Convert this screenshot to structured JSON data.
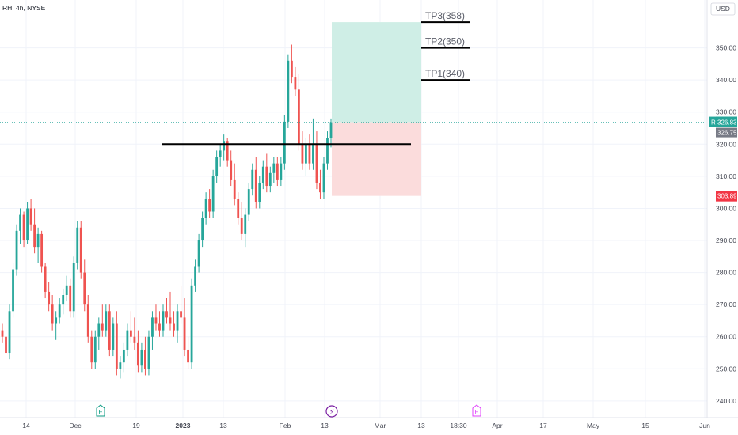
{
  "header": {
    "symbol": "RH, 4h, NYSE",
    "currency": "USD"
  },
  "colors": {
    "up": "#26a69a",
    "down": "#ef5350",
    "profit_zone": "#cfeee6",
    "loss_zone": "#fbdcdc",
    "grid": "#f0f3fa"
  },
  "chart_data": {
    "type": "candlestick",
    "ylim": [
      238,
      360
    ],
    "y_ticks": [
      "240.00",
      "250.00",
      "260.00",
      "270.00",
      "280.00",
      "290.00",
      "300.00",
      "310.00",
      "320.00",
      "330.00",
      "340.00",
      "350.00"
    ],
    "x_tick_labels": [
      "14",
      "Dec",
      "19",
      "2023",
      "13",
      "Feb",
      "13",
      "Mar",
      "13",
      "18:30",
      "Apr",
      "17",
      "May",
      "15",
      "Jun"
    ],
    "last_price": {
      "symbol": "RH",
      "label": "326.83",
      "value": 326.83,
      "prev_label": "326.75"
    },
    "stop_loss": {
      "label": "303.89",
      "value": 303.89
    },
    "entry": 326.83,
    "horizontal_level": 320,
    "take_profits": [
      {
        "label": "TP1(340)",
        "value": 340
      },
      {
        "label": "TP2(350)",
        "value": 350
      },
      {
        "label": "TP3(358)",
        "value": 358
      }
    ],
    "events": [
      {
        "symbol": "E",
        "type": "earnings"
      },
      {
        "symbol": "⚡",
        "type": "split"
      },
      {
        "symbol": "E",
        "type": "earnings-upcoming"
      }
    ],
    "candles": [
      [
        262,
        264,
        258,
        260
      ],
      [
        260,
        262,
        253,
        255
      ],
      [
        255,
        270,
        253,
        268
      ],
      [
        268,
        283,
        266,
        281
      ],
      [
        281,
        295,
        279,
        293
      ],
      [
        293,
        300,
        289,
        298
      ],
      [
        298,
        299,
        288,
        290
      ],
      [
        290,
        302,
        289,
        300
      ],
      [
        300,
        303,
        293,
        295
      ],
      [
        295,
        300,
        286,
        288
      ],
      [
        288,
        294,
        283,
        292
      ],
      [
        292,
        293,
        280,
        282
      ],
      [
        282,
        283,
        272,
        274
      ],
      [
        274,
        277,
        268,
        270
      ],
      [
        270,
        273,
        262,
        264
      ],
      [
        264,
        268,
        259,
        266
      ],
      [
        266,
        272,
        264,
        270
      ],
      [
        270,
        275,
        267,
        273
      ],
      [
        273,
        279,
        271,
        276
      ],
      [
        276,
        278,
        266,
        268
      ],
      [
        268,
        285,
        266,
        283
      ],
      [
        283,
        296,
        281,
        294
      ],
      [
        294,
        296,
        278,
        280
      ],
      [
        280,
        284,
        268,
        270
      ],
      [
        270,
        273,
        258,
        260
      ],
      [
        260,
        262,
        250,
        252
      ],
      [
        252,
        262,
        250,
        260
      ],
      [
        260,
        266,
        256,
        264
      ],
      [
        264,
        270,
        260,
        262
      ],
      [
        262,
        270,
        260,
        268
      ],
      [
        268,
        270,
        254,
        256
      ],
      [
        256,
        266,
        254,
        264
      ],
      [
        264,
        268,
        248,
        250
      ],
      [
        250,
        254,
        247,
        252
      ],
      [
        252,
        258,
        249,
        256
      ],
      [
        256,
        264,
        254,
        262
      ],
      [
        262,
        268,
        258,
        260
      ],
      [
        260,
        266,
        256,
        258
      ],
      [
        258,
        262,
        249,
        251
      ],
      [
        251,
        258,
        249,
        256
      ],
      [
        256,
        260,
        248,
        250
      ],
      [
        250,
        262,
        248,
        260
      ],
      [
        260,
        268,
        256,
        266
      ],
      [
        266,
        270,
        262,
        264
      ],
      [
        264,
        268,
        260,
        262
      ],
      [
        262,
        270,
        260,
        268
      ],
      [
        268,
        272,
        264,
        266
      ],
      [
        266,
        274,
        262,
        264
      ],
      [
        264,
        268,
        260,
        262
      ],
      [
        262,
        270,
        258,
        268
      ],
      [
        268,
        276,
        264,
        266
      ],
      [
        266,
        272,
        254,
        256
      ],
      [
        256,
        260,
        250,
        252
      ],
      [
        252,
        278,
        250,
        276
      ],
      [
        276,
        284,
        274,
        282
      ],
      [
        282,
        292,
        280,
        290
      ],
      [
        290,
        299,
        288,
        297
      ],
      [
        297,
        305,
        295,
        303
      ],
      [
        303,
        306,
        297,
        299
      ],
      [
        299,
        312,
        297,
        310
      ],
      [
        310,
        318,
        308,
        316
      ],
      [
        316,
        320,
        313,
        318
      ],
      [
        318,
        323,
        315,
        321
      ],
      [
        321,
        322,
        313,
        315
      ],
      [
        315,
        318,
        307,
        309
      ],
      [
        309,
        314,
        301,
        303
      ],
      [
        303,
        305,
        295,
        297
      ],
      [
        297,
        302,
        290,
        292
      ],
      [
        292,
        300,
        288,
        298
      ],
      [
        298,
        308,
        296,
        306
      ],
      [
        306,
        314,
        304,
        312
      ],
      [
        312,
        316,
        300,
        302
      ],
      [
        302,
        310,
        300,
        308
      ],
      [
        308,
        315,
        306,
        313
      ],
      [
        313,
        317,
        305,
        307
      ],
      [
        307,
        313,
        305,
        311
      ],
      [
        311,
        316,
        308,
        314
      ],
      [
        314,
        316,
        307,
        309
      ],
      [
        309,
        316,
        307,
        314
      ],
      [
        314,
        329,
        312,
        327
      ],
      [
        327,
        348,
        325,
        346
      ],
      [
        346,
        351,
        339,
        341
      ],
      [
        341,
        344,
        335,
        337
      ],
      [
        337,
        342,
        318,
        320
      ],
      [
        320,
        324,
        312,
        314
      ],
      [
        314,
        322,
        310,
        320
      ],
      [
        320,
        323,
        312,
        314
      ],
      [
        314,
        328,
        312,
        320
      ],
      [
        320,
        324,
        306,
        308
      ],
      [
        308,
        312,
        303,
        305
      ],
      [
        305,
        316,
        303,
        314
      ],
      [
        314,
        324,
        312,
        322
      ],
      [
        322,
        328,
        319,
        326.83
      ]
    ]
  }
}
